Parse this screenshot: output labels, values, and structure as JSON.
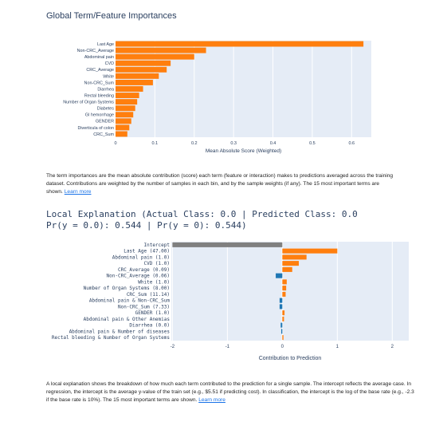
{
  "global": {
    "title": "Global Term/Feature Importances",
    "xlabel": "Mean Absolute Score (Weighted)",
    "description_text": "The term importances are the mean absolute contribution (score) each term (feature or interaction) makes to predictions averaged across the training dataset. Contributions are weighted by the number of samples in each bin, and by the sample weights (if any). The 15 most important terms are shown.",
    "learn_more": "Learn more"
  },
  "local": {
    "title_line1": "Local Explanation (Actual Class: 0.0 | Predicted Class: 0.0",
    "title_line2": "Pr(y = 0.0): 0.544 | Pr(y = 0): 0.544)",
    "xlabel": "Contribution to Prediction",
    "description_text": "A local explanation shows the breakdown of how much each term contributed to the prediction for a single sample. The intercept reflects the average case. In regression, the intercept is the average y-value of the train set (e.g., $5.51 if predicting cost). In classification, the intercept is the log of the base rate (e.g., -2.3 if the base rate is 10%). The 15 most important terms are shown.",
    "learn_more": "Learn more"
  },
  "chart_data": [
    {
      "type": "bar",
      "orientation": "horizontal",
      "title": "Global Term/Feature Importances",
      "xlabel": "Mean Absolute Score (Weighted)",
      "categories": [
        "Last Age",
        "Non-CRC_Average",
        "Abdominal pain",
        "CVD",
        "CRC_Average",
        "White",
        "Non-CRC_Sum",
        "Diarrhea",
        "Rectal bleeding",
        "Number of Organ Systems",
        "Diabetes",
        "GI hemorrhage",
        "GENDER",
        "Diverticula of colon",
        "CRC_Sum"
      ],
      "values": [
        0.63,
        0.23,
        0.2,
        0.14,
        0.13,
        0.11,
        0.095,
        0.07,
        0.06,
        0.055,
        0.05,
        0.045,
        0.04,
        0.035,
        0.03
      ],
      "xlim": [
        0,
        0.65
      ],
      "xticks": [
        "0",
        "0.1",
        "0.2",
        "0.3",
        "0.4",
        "0.5",
        "0.6"
      ],
      "color": "#ff7f0e",
      "grid": true
    },
    {
      "type": "bar",
      "orientation": "horizontal",
      "title": "Local Explanation (Actual Class: 0.0 | Predicted Class: 0.0 Pr(y = 0.0): 0.544 | Pr(y = 0): 0.544)",
      "xlabel": "Contribution to Prediction",
      "categories": [
        "Intercept",
        "Last Age (47.00)",
        "Abdominal pain (1.0)",
        "CVD (1.0)",
        "CRC_Average (0.09)",
        "Non-CRC_Average (0.06)",
        "White (1.0)",
        "Number of Organ Systems (8.00)",
        "CRC_Sum (11.14)",
        "Abdominal pain & Non-CRC_Sum",
        "Non-CRC_Sum (7.33)",
        "GENDER (1.0)",
        "Abdominal pain & Other Anemias",
        "Diarrhea (0.0)",
        "Abdominal pain & Number of diseases",
        "Rectal bleeding & Number of Organ Systems"
      ],
      "values": [
        -2.0,
        1.0,
        0.44,
        0.3,
        0.18,
        -0.12,
        0.08,
        0.07,
        0.06,
        -0.05,
        -0.05,
        0.04,
        0.03,
        -0.03,
        -0.02,
        0.02
      ],
      "xlim": [
        -2.02,
        2.3
      ],
      "xticks": [
        "-2",
        "-1",
        "0",
        "1",
        "2"
      ],
      "colors": {
        "intercept": "#808080",
        "positive": "#ff7f0e",
        "negative": "#1f77b4"
      },
      "grid": true
    }
  ]
}
